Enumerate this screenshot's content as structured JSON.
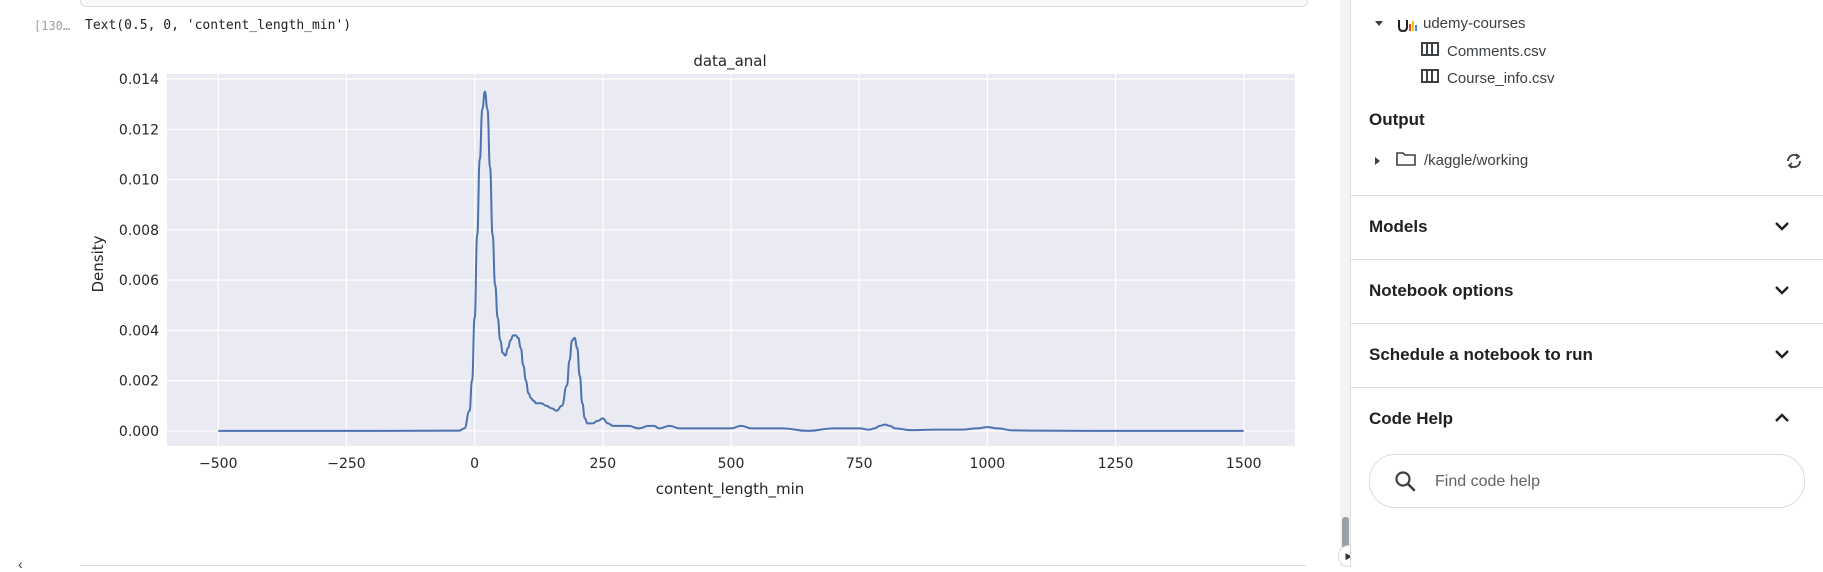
{
  "cell": {
    "exec_count": "[130…",
    "output_text": "Text(0.5, 0, 'content_length_min')"
  },
  "chart_data": {
    "type": "line",
    "title": "data_anal",
    "xlabel": "content_length_min",
    "ylabel": "Density",
    "xlim": [
      -600,
      1600
    ],
    "ylim": [
      -0.0006,
      0.0142
    ],
    "xticks": [
      -500,
      -250,
      0,
      250,
      500,
      750,
      1000,
      1250,
      1500
    ],
    "xtick_labels": [
      "−500",
      "−250",
      "0",
      "250",
      "500",
      "750",
      "1000",
      "1250",
      "1500"
    ],
    "yticks": [
      0.0,
      0.002,
      0.004,
      0.006,
      0.008,
      0.01,
      0.012,
      0.014
    ],
    "ytick_labels": [
      "0.000",
      "0.002",
      "0.004",
      "0.006",
      "0.008",
      "0.010",
      "0.012",
      "0.014"
    ],
    "grid": true,
    "background": "#eaeaf2",
    "line_color": "#4c72b0",
    "series": [
      {
        "x": [
          -500,
          -200,
          -30,
          -20,
          -10,
          -5,
          0,
          5,
          10,
          15,
          20,
          25,
          30,
          35,
          40,
          45,
          50,
          55,
          60,
          65,
          70,
          75,
          80,
          85,
          90,
          95,
          100,
          105,
          110,
          115,
          120,
          130,
          140,
          150,
          160,
          170,
          180,
          185,
          190,
          195,
          200,
          205,
          210,
          215,
          220,
          230,
          240,
          250,
          260,
          270,
          280,
          300,
          320,
          340,
          350,
          360,
          380,
          400,
          420,
          450,
          480,
          500,
          520,
          540,
          560,
          600,
          650,
          700,
          750,
          770,
          780,
          790,
          800,
          810,
          820,
          850,
          900,
          950,
          980,
          1000,
          1020,
          1050,
          1100,
          1200,
          1300,
          1400,
          1500
        ],
        "y": [
          0,
          0,
          1e-05,
          0.0001,
          0.0008,
          0.002,
          0.0045,
          0.0078,
          0.0108,
          0.0128,
          0.0135,
          0.0128,
          0.0105,
          0.0078,
          0.0058,
          0.0045,
          0.0036,
          0.0031,
          0.003,
          0.0033,
          0.0036,
          0.0038,
          0.0038,
          0.0037,
          0.0033,
          0.0026,
          0.002,
          0.0015,
          0.0013,
          0.0012,
          0.0011,
          0.0011,
          0.001,
          0.0009,
          0.0008,
          0.001,
          0.0018,
          0.0028,
          0.0036,
          0.0037,
          0.0033,
          0.0022,
          0.0011,
          0.0005,
          0.0003,
          0.0003,
          0.0004,
          0.0005,
          0.0003,
          0.0002,
          0.0002,
          0.0002,
          0.0001,
          0.0002,
          0.0002,
          0.0001,
          0.0002,
          0.0001,
          0.0001,
          0.0001,
          0.0001,
          0.0001,
          0.0002,
          0.0001,
          0.0001,
          0.0001,
          0.0,
          0.0001,
          0.0001,
          5e-05,
          0.0001,
          0.0002,
          0.00025,
          0.0002,
          0.0001,
          3e-05,
          5e-05,
          5e-05,
          0.0001,
          0.00015,
          0.0001,
          2e-05,
          1e-05,
          0,
          0,
          0,
          0
        ]
      }
    ]
  },
  "sidebar": {
    "dataset_name": "udemy-courses",
    "files": [
      "Comments.csv",
      "Course_info.csv"
    ],
    "output_heading": "Output",
    "output_path": "/kaggle/working",
    "accordions": [
      {
        "title": "Models",
        "expanded": false
      },
      {
        "title": "Notebook options",
        "expanded": false
      },
      {
        "title": "Schedule a notebook to run",
        "expanded": false
      },
      {
        "title": "Code Help",
        "expanded": true
      }
    ],
    "code_help_placeholder": "Find code help"
  },
  "colors": {
    "border": "#dadce0",
    "text": "#202124",
    "muted": "#5f6368",
    "icon_multicolor": [
      "#ea4335",
      "#fbbc04",
      "#34a853",
      "#4285f4"
    ]
  }
}
